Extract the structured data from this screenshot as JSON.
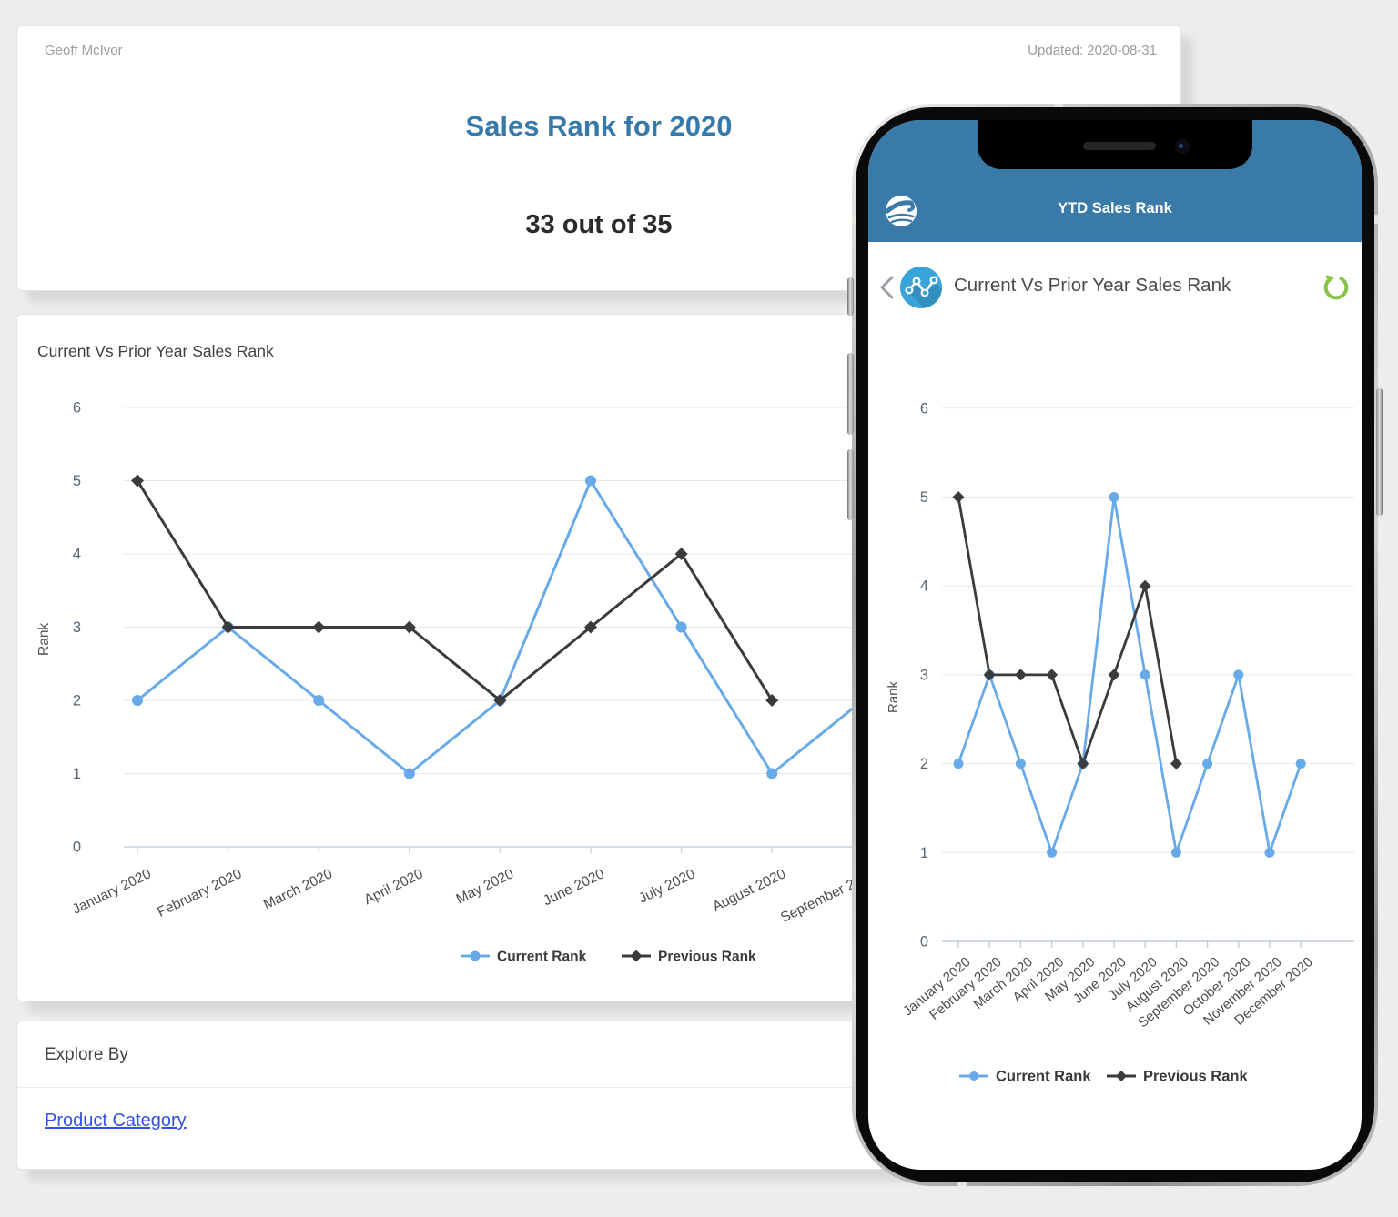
{
  "summary_card": {
    "author": "Geoff McIvor",
    "updated": "Updated: 2020-08-31",
    "title": "Sales Rank for 2020",
    "value": "33 out of 35"
  },
  "explore_card": {
    "heading": "Explore By",
    "link_label": "Product Category"
  },
  "phone": {
    "app_title": "YTD Sales Rank",
    "view_title": "Current Vs Prior Year Sales Rank",
    "icons": {
      "logo": "app-logo-icon",
      "back": "back-chevron-icon",
      "view": "line-chart-icon",
      "refresh": "refresh-icon"
    }
  },
  "colors": {
    "title_blue": "#3679ab",
    "phone_header_blue": "#3a7aa8",
    "link_blue": "#3452e1",
    "series_current": "#68a9e8",
    "series_previous": "#3b3b3d",
    "refresh_green": "#8bc34a",
    "icon_circle_blue": "#3aa3da"
  },
  "chart_data": {
    "type": "line",
    "title": "Current Vs Prior Year Sales Rank",
    "ylabel": "Rank",
    "ylim": [
      0,
      6
    ],
    "yticks": [
      0,
      1,
      2,
      3,
      4,
      5,
      6
    ],
    "grid": true,
    "legend_position": "bottom",
    "categories": [
      "January 2020",
      "February 2020",
      "March 2020",
      "April 2020",
      "May 2020",
      "June 2020",
      "July 2020",
      "August 2020",
      "September 2020",
      "October 2020",
      "November 2020",
      "December 2020"
    ],
    "series": [
      {
        "name": "Current Rank",
        "marker": "circle",
        "color": "#68a9e8",
        "values": [
          2,
          3,
          2,
          1,
          2,
          5,
          3,
          1,
          2,
          3,
          1,
          2
        ]
      },
      {
        "name": "Previous Rank",
        "marker": "diamond",
        "color": "#3b3b3d",
        "values": [
          5,
          3,
          3,
          3,
          2,
          3,
          4,
          2,
          null,
          null,
          null,
          null
        ]
      }
    ]
  }
}
